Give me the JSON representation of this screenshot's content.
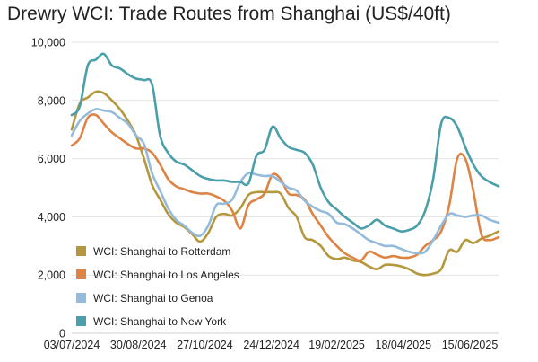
{
  "chart_data": {
    "type": "line",
    "title": "Drewry WCI: Trade Routes from Shanghai (US$/40ft)",
    "xlabel": "",
    "ylabel": "",
    "ylim": [
      0,
      10000
    ],
    "y_ticks": [
      0,
      2000,
      4000,
      6000,
      8000,
      10000
    ],
    "y_tick_labels": [
      "0",
      "2,000",
      "4,000",
      "6,000",
      "8,000",
      "10,000"
    ],
    "x_ticks": [
      "2024-07-03",
      "2024-08-30",
      "2024-10-27",
      "2024-12-24",
      "2025-02-19",
      "2025-04-18",
      "2025-06-15"
    ],
    "x_tick_labels": [
      "03/07/2024",
      "30/08/2024",
      "27/10/2024",
      "24/12/2024",
      "19/02/2025",
      "18/04/2025",
      "15/06/2025"
    ],
    "x_range": [
      "2024-07-03",
      "2025-07-10"
    ],
    "grid": true,
    "legend_position": "bottom-left",
    "x": [
      "2024-07-03",
      "2024-07-10",
      "2024-07-17",
      "2024-07-24",
      "2024-07-31",
      "2024-08-07",
      "2024-08-14",
      "2024-08-21",
      "2024-08-28",
      "2024-09-04",
      "2024-09-11",
      "2024-09-18",
      "2024-09-25",
      "2024-10-02",
      "2024-10-09",
      "2024-10-16",
      "2024-10-23",
      "2024-10-30",
      "2024-11-06",
      "2024-11-13",
      "2024-11-20",
      "2024-11-27",
      "2024-12-04",
      "2024-12-11",
      "2024-12-18",
      "2024-12-25",
      "2025-01-01",
      "2025-01-08",
      "2025-01-15",
      "2025-01-22",
      "2025-01-29",
      "2025-02-05",
      "2025-02-12",
      "2025-02-19",
      "2025-02-26",
      "2025-03-05",
      "2025-03-12",
      "2025-03-19",
      "2025-03-26",
      "2025-04-02",
      "2025-04-09",
      "2025-04-16",
      "2025-04-23",
      "2025-04-30",
      "2025-05-07",
      "2025-05-14",
      "2025-05-21",
      "2025-05-28",
      "2025-06-04",
      "2025-06-11",
      "2025-06-18",
      "2025-06-25",
      "2025-07-02",
      "2025-07-10"
    ],
    "series": [
      {
        "name": "WCI: Shanghai to Rotterdam",
        "color": "#b5983e",
        "values": [
          7000,
          7900,
          8100,
          8300,
          8250,
          8000,
          7700,
          7300,
          6800,
          6000,
          5100,
          4600,
          4100,
          3800,
          3650,
          3400,
          3150,
          3450,
          4000,
          4100,
          4050,
          4300,
          4750,
          4850,
          4850,
          4850,
          4800,
          4300,
          4000,
          3300,
          3200,
          3000,
          2650,
          2550,
          2600,
          2500,
          2450,
          2300,
          2200,
          2350,
          2350,
          2300,
          2200,
          2050,
          2000,
          2050,
          2200,
          2850,
          2800,
          3200,
          3100,
          3250,
          3350,
          3500
        ]
      },
      {
        "name": "WCI: Shanghai to Los Angeles",
        "color": "#dd8444",
        "values": [
          6450,
          6700,
          7400,
          7500,
          7200,
          6900,
          6700,
          6500,
          6350,
          6350,
          6200,
          5800,
          5300,
          5050,
          4950,
          4850,
          4800,
          4800,
          4700,
          4550,
          4200,
          3600,
          4400,
          4600,
          4800,
          5450,
          5300,
          4800,
          4750,
          4600,
          4100,
          3700,
          3300,
          3000,
          2750,
          2600,
          2500,
          2800,
          2700,
          2600,
          2650,
          2600,
          2600,
          2700,
          3000,
          3200,
          3500,
          4400,
          6000,
          6000,
          4900,
          3400,
          3200,
          3300
        ]
      },
      {
        "name": "WCI: Shanghai to Genoa",
        "color": "#94bbdc",
        "values": [
          6800,
          7300,
          7550,
          7700,
          7650,
          7600,
          7400,
          7200,
          6800,
          6500,
          5500,
          4900,
          4300,
          3900,
          3700,
          3450,
          3350,
          3700,
          4400,
          4450,
          4600,
          5200,
          5500,
          5450,
          5400,
          5400,
          5200,
          5000,
          4900,
          4550,
          4350,
          4200,
          4100,
          3800,
          3750,
          3600,
          3400,
          3200,
          3100,
          3000,
          3000,
          2900,
          2800,
          2750,
          2800,
          3200,
          3700,
          4100,
          4050,
          4000,
          4050,
          4050,
          3900,
          3800
        ]
      },
      {
        "name": "WCI: Shanghai to New York",
        "color": "#4a9faa",
        "values": [
          7500,
          7800,
          9200,
          9400,
          9600,
          9200,
          9100,
          8900,
          8750,
          8700,
          8550,
          6800,
          6200,
          5900,
          5800,
          5600,
          5400,
          5300,
          5250,
          5250,
          5200,
          5200,
          5150,
          6100,
          6300,
          7100,
          6700,
          6400,
          6300,
          6200,
          5800,
          5000,
          4500,
          4250,
          4000,
          3800,
          3600,
          3700,
          3900,
          3700,
          3600,
          3500,
          3550,
          3700,
          4200,
          5300,
          7200,
          7400,
          7100,
          6400,
          5800,
          5400,
          5200,
          5050
        ]
      }
    ]
  }
}
